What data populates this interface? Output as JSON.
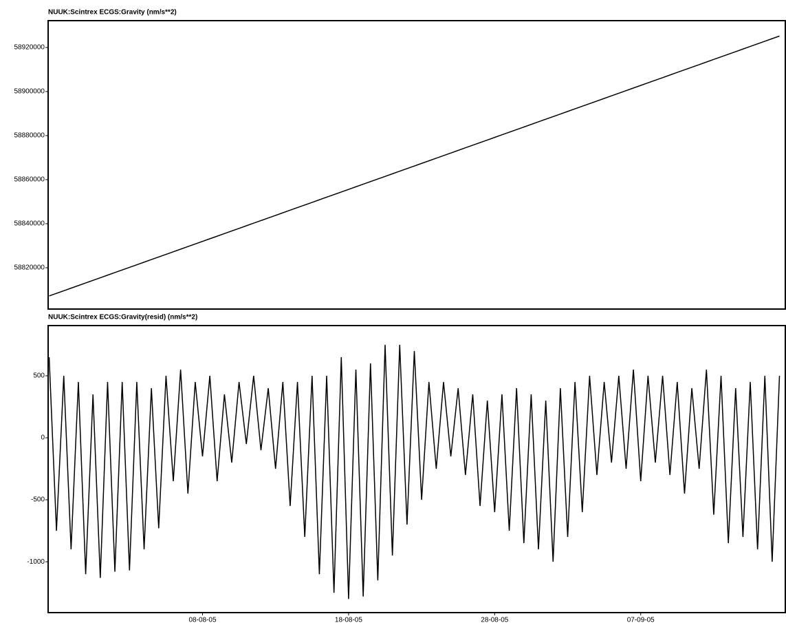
{
  "chart_data": [
    {
      "type": "line",
      "title": "NUUK:Scintrex ECGS:Gravity (nm/s**2)",
      "x": [
        209.5,
        210,
        210.5,
        211,
        211.5,
        212,
        212.5,
        213,
        213.5,
        214,
        214.5,
        215,
        215.5,
        216,
        216.5,
        217,
        217.5,
        218,
        218.5,
        219,
        219.5,
        220,
        220.5,
        221,
        221.5,
        222,
        222.5,
        223,
        223.5,
        224,
        224.5,
        225,
        225.5,
        226,
        226.5,
        227,
        227.5,
        228,
        228.5,
        229,
        229.5,
        230,
        230.5,
        231,
        231.5,
        232,
        232.5,
        233,
        233.5,
        234,
        234.5,
        235,
        235.5,
        236,
        236.5,
        237,
        237.5,
        238,
        238.5,
        239,
        239.5,
        240,
        240.5,
        241,
        241.5,
        242,
        242.5,
        243,
        243.5,
        244,
        244.5,
        245,
        245.5,
        246,
        246.5,
        247,
        247.5,
        248,
        248.5,
        249,
        249.5,
        250,
        250.5,
        251,
        251.5,
        252,
        252.5,
        253,
        253.5,
        254,
        254.5,
        255,
        255.5,
        256,
        256.5,
        257,
        257.5,
        258,
        258.5,
        259,
        259.5
      ],
      "series": [
        {
          "color": "#000000",
          "values": [
            58807200,
            58808380,
            58809560,
            58810740,
            58811920,
            58813100,
            58814280,
            58815460,
            58816640,
            58817820,
            58819000,
            58820180,
            58821360,
            58822540,
            58823720,
            58824900,
            58826080,
            58827260,
            58828440,
            58829620,
            58830800,
            58831980,
            58833160,
            58834340,
            58835520,
            58836700,
            58837880,
            58839060,
            58840240,
            58841420,
            58842600,
            58843780,
            58844960,
            58846140,
            58847320,
            58848500,
            58849680,
            58850860,
            58852040,
            58853220,
            58854400,
            58855580,
            58856760,
            58857940,
            58859120,
            58860300,
            58861480,
            58862660,
            58863840,
            58865020,
            58866200,
            58867380,
            58868560,
            58869740,
            58870920,
            58872100,
            58873280,
            58874460,
            58875640,
            58876820,
            58878000,
            58879180,
            58880360,
            58881540,
            58882720,
            58883900,
            58885080,
            58886260,
            58887440,
            58888620,
            58889800,
            58890980,
            58892160,
            58893340,
            58894520,
            58895700,
            58896880,
            58898060,
            58899240,
            58900420,
            58901600,
            58902780,
            58903960,
            58905140,
            58906320,
            58907500,
            58908680,
            58909860,
            58911040,
            58912220,
            58913400,
            58914580,
            58915760,
            58916940,
            58918120,
            58919300,
            58920480,
            58921660,
            58922840,
            58924020,
            58925200
          ]
        }
      ],
      "xlim": [
        209.43,
        259.9
      ],
      "ylim": [
        58801250,
        58932190
      ],
      "yticks": [
        58820000,
        58840000,
        58860000,
        58880000,
        58900000,
        58920000
      ]
    },
    {
      "type": "line",
      "title": "NUUK:Scintrex ECGS:Gravity(resid) (nm/s**2)",
      "x": [
        209.5,
        210,
        210.5,
        211,
        211.5,
        212,
        212.5,
        213,
        213.5,
        214,
        214.5,
        215,
        215.5,
        216,
        216.5,
        217,
        217.5,
        218,
        218.5,
        219,
        219.5,
        220,
        220.5,
        221,
        221.5,
        222,
        222.5,
        223,
        223.5,
        224,
        224.5,
        225,
        225.5,
        226,
        226.5,
        227,
        227.5,
        228,
        228.5,
        229,
        229.5,
        230,
        230.5,
        231,
        231.5,
        232,
        232.5,
        233,
        233.5,
        234,
        234.5,
        235,
        235.5,
        236,
        236.5,
        237,
        237.5,
        238,
        238.5,
        239,
        239.5,
        240,
        240.5,
        241,
        241.5,
        242,
        242.5,
        243,
        243.5,
        244,
        244.5,
        245,
        245.5,
        246,
        246.5,
        247,
        247.5,
        248,
        248.5,
        249,
        249.5,
        250,
        250.5,
        251,
        251.5,
        252,
        252.5,
        253,
        253.5,
        254,
        254.5,
        255,
        255.5,
        256,
        256.5,
        257,
        257.5,
        258,
        258.5,
        259,
        259.5
      ],
      "series": [
        {
          "color": "#000000",
          "values": [
            650,
            -750,
            500,
            -900,
            450,
            -1100,
            350,
            -1130,
            450,
            -1080,
            450,
            -1070,
            450,
            -900,
            400,
            -730,
            500,
            -350,
            550,
            -450,
            450,
            -150,
            500,
            -350,
            350,
            -200,
            450,
            -50,
            500,
            -100,
            400,
            -250,
            450,
            -550,
            450,
            -800,
            500,
            -1100,
            500,
            -1250,
            650,
            -1300,
            550,
            -1280,
            600,
            -1150,
            750,
            -950,
            750,
            -700,
            700,
            -500,
            450,
            -250,
            450,
            -150,
            400,
            -300,
            350,
            -550,
            300,
            -600,
            350,
            -750,
            400,
            -850,
            350,
            -900,
            300,
            -1000,
            400,
            -800,
            450,
            -600,
            500,
            -300,
            450,
            -200,
            500,
            -250,
            550,
            -350,
            500,
            -200,
            500,
            -300,
            450,
            -450,
            400,
            -250,
            550,
            -620,
            500,
            -850,
            400,
            -800,
            450,
            -900,
            500,
            -1000,
            500
          ]
        }
      ],
      "xlim": [
        209.43,
        259.9
      ],
      "ylim": [
        -1410,
        905
      ],
      "yticks": [
        -1000,
        -500,
        0,
        500
      ],
      "xticks": [
        {
          "value": 220,
          "label": "08-08-05"
        },
        {
          "value": 230,
          "label": "18-08-05"
        },
        {
          "value": 240,
          "label": "28-08-05"
        },
        {
          "value": 250,
          "label": "07-09-05"
        }
      ]
    }
  ]
}
